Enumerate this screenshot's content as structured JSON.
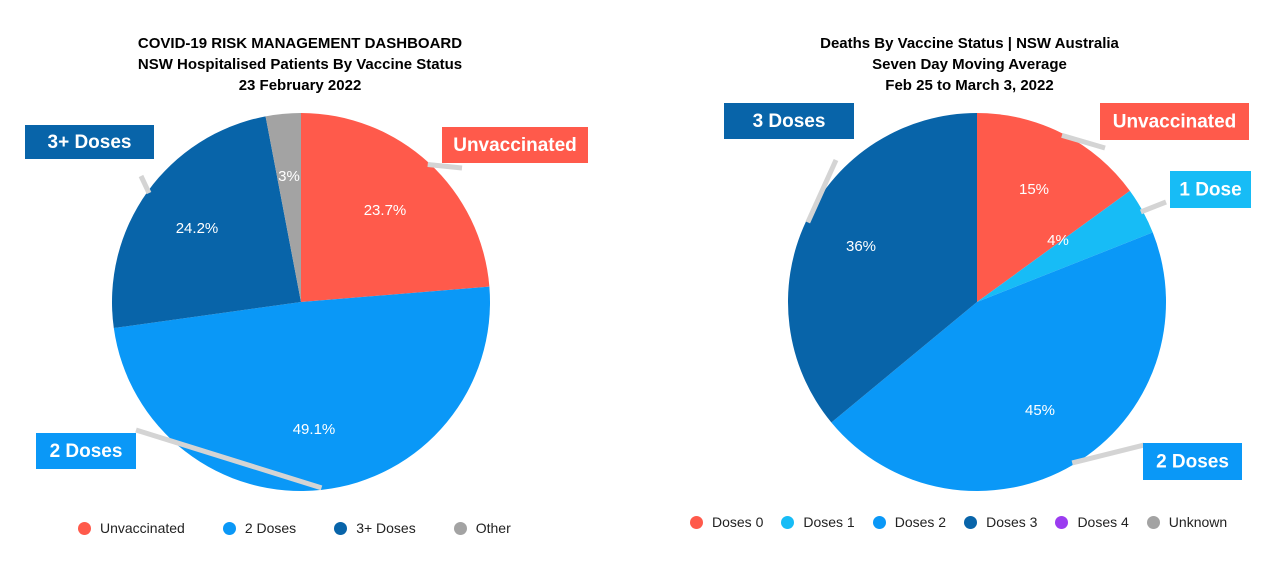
{
  "charts": [
    {
      "title": [
        "COVID-19 RISK MANAGEMENT DASHBOARD",
        "NSW Hospitalised Patients By Vaccine Status",
        "23 February 2022"
      ],
      "legend": [
        {
          "label": "Unvaccinated",
          "color": "#ff5a4b"
        },
        {
          "label": "2 Doses",
          "color": "#0a98f7"
        },
        {
          "label": "3+ Doses",
          "color": "#0864a9"
        },
        {
          "label": "Other",
          "color": "#a3a3a3"
        }
      ]
    },
    {
      "title": [
        "Deaths By Vaccine Status | NSW Australia",
        "Seven Day Moving Average",
        "Feb 25 to March 3, 2022"
      ],
      "legend": [
        {
          "label": "Doses 0",
          "color": "#ff5a4b"
        },
        {
          "label": "Doses 1",
          "color": "#17bcf6"
        },
        {
          "label": "Doses 2",
          "color": "#0a98f7"
        },
        {
          "label": "Doses 3",
          "color": "#0864a9"
        },
        {
          "label": "Doses 4",
          "color": "#9b3cf0"
        },
        {
          "label": "Unknown",
          "color": "#a3a3a3"
        }
      ]
    }
  ],
  "chart_data": [
    {
      "type": "pie",
      "title": "COVID-19 RISK MANAGEMENT DASHBOARD / NSW Hospitalised Patients By Vaccine Status / 23 February 2022",
      "slices": [
        {
          "label": "Unvaccinated",
          "value": 23.7,
          "display": "23.7%",
          "callout": "Unvaccinated",
          "color": "#ff5a4b"
        },
        {
          "label": "2 Doses",
          "value": 49.1,
          "display": "49.1%",
          "callout": "2 Doses",
          "color": "#0a98f7"
        },
        {
          "label": "3+ Doses",
          "value": 24.2,
          "display": "24.2%",
          "callout": "3+ Doses",
          "color": "#0864a9"
        },
        {
          "label": "Other",
          "value": 3.0,
          "display": "3%",
          "callout": "",
          "color": "#a3a3a3"
        }
      ],
      "legend_position": "bottom"
    },
    {
      "type": "pie",
      "title": "Deaths By Vaccine Status | NSW Australia / Seven Day Moving Average / Feb 25 to March 3, 2022",
      "slices": [
        {
          "label": "Doses 0",
          "value": 15,
          "display": "15%",
          "callout": "Unvaccinated",
          "color": "#ff5a4b"
        },
        {
          "label": "Doses 1",
          "value": 4,
          "display": "4%",
          "callout": "1 Dose",
          "color": "#17bcf6"
        },
        {
          "label": "Doses 2",
          "value": 45,
          "display": "45%",
          "callout": "2 Doses",
          "color": "#0a98f7"
        },
        {
          "label": "Doses 3",
          "value": 36,
          "display": "36%",
          "callout": "3 Doses",
          "color": "#0864a9"
        }
      ],
      "legend_position": "bottom"
    }
  ]
}
